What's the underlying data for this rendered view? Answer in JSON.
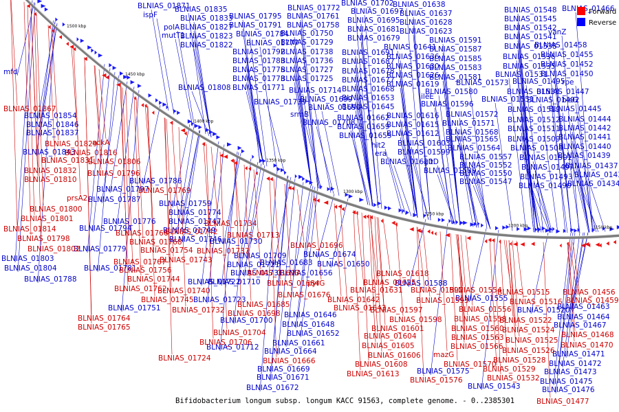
{
  "caption": "Bifidobacterium longum subsp. longum KACC 91563, complete genome. - 0..2385301",
  "legend": [
    {
      "label": "Forward",
      "color": "#ff0000"
    },
    {
      "label": "Reverse",
      "color": "#0000ff"
    }
  ],
  "ticks": [
    "1500 kbp",
    "1450 kbp",
    "1400 kbp",
    "1350 kbp",
    "1300 kbp",
    "1250 kbp",
    "1200 kbp",
    "1150 kbp"
  ],
  "colors": {
    "forward": "#cc0000",
    "reverse": "#0000cc",
    "backbone": "#888888"
  },
  "reverse_labels": [
    "BLNIAS_01871",
    "ispF",
    "BLNIAS_01835",
    "BLNIAS_01833",
    "BLNIAS_01827",
    "BLNIAS_01823",
    "BLNIAS_01822",
    "polA",
    "mutT1",
    "mfd",
    "BLNIAS_01772",
    "BLNIAS_01795",
    "BLNIAS_01761",
    "BLNIAS_01791",
    "BLNIAS_01758",
    "BLNIAS_01784",
    "BLNIAS_01750",
    "BLNIAS_01777",
    "BLNIAS_01729",
    "BLNIAS_01792",
    "BLNIAS_01738",
    "BLNIAS_01783",
    "BLNIAS_01736",
    "BLNIAS_01775",
    "BLNIAS_01727",
    "BLNIAS_01773",
    "BLNIAS_01725",
    "BLNIAS_01771",
    "BLNIAS_01714",
    "BLNIAS_01808",
    "BLNIAS_01699",
    "BLNIAS_01739",
    "BLNIAS_01690",
    "srmB",
    "BLNIAS_01708",
    "BLNIAS_01702",
    "BLNIAS_01697",
    "BLNIAS_01695",
    "BLNIAS_01681",
    "BLNIAS_01679",
    "BLNIAS_01691",
    "BLNIAS_01687",
    "BLNIAS_01678",
    "BLNIAS_01677",
    "BLNIAS_01668",
    "BLNIAS_01653",
    "BLNIAS_01645",
    "BLNIAS_01662",
    "BLNIAS_01659",
    "BLNIAS_01655",
    "hit2",
    "era",
    "BLNIAS_01620",
    "BLNIAS_01638",
    "BLNIAS_01637",
    "BLNIAS_01628",
    "BLNIAS_01623",
    "BLNIAS_01641",
    "BLNIAS_01636",
    "BLNIAS_01630",
    "BLNIAS_01626",
    "BLNIAS_01619",
    "ileE",
    "BLNIAS_01616",
    "BLNIAS_01615",
    "BLNIAS_01612",
    "BLNIAS_01603",
    "BLNIAS_01599",
    "gltD",
    "BLNIAS_01589",
    "BLNIAS_01591",
    "BLNIAS_01587",
    "BLNIAS_01585",
    "BLNIAS_01583",
    "BLNIAS_01581",
    "BLNIAS_01573",
    "BLNIAS_01580",
    "BLNIAS_01596",
    "BLNIAS_01572",
    "BLNIAS_01571",
    "BLNIAS_01568",
    "BLNIAS_01565",
    "BLNIAS_01564",
    "BLNIAS_01557",
    "BLNIAS_01552",
    "BLNIAS_01550",
    "BLNIAS_01547",
    "BLNIAS_01548",
    "BLNIAS_01545",
    "BLNIAS_01542",
    "BLNIAS_01541",
    "BLNIAS_01538",
    "BLNIAS_01536",
    "BLNIAS_01535",
    "BLNIAS_01531",
    "BLNIAS_01533",
    "BLNIAS_01551",
    "BLNIAS_01519",
    "BLNIAS_01512",
    "BLNIAS_01511",
    "BLNIAS_01509",
    "BLNIAS_01508",
    "BLNIAS_01501",
    "BLNIAS_01497",
    "BLNIAS_01493",
    "BLNIAS_01490",
    "BLNIAS_01466",
    "vanZ",
    "BLNIAS_01458",
    "BLNIAS_01455",
    "BLNIAS_01452",
    "BLNIAS_01450",
    "BLNIAS_01495",
    "rpe",
    "BLNIAS_01447",
    "BLNIAS_01492",
    "hisG",
    "BLNIAS_01445",
    "BLNIAS_01444",
    "BLNIAS_01442",
    "BLNIAS_01441",
    "BLNIAS_01440",
    "BLNIAS_01439",
    "BLNIAS_01437",
    "BLNIAS_01436",
    "BLNIAS_01434",
    "BLNIAS_01854",
    "BLNIAS_01846",
    "BLNIAS_01837",
    "BLNIAS_01843",
    "BLNIAS_01786",
    "BLNIAS_01797",
    "BLNIAS_01787",
    "BLNIAS_01759",
    "BLNIAS_01774",
    "BLNIAS_01776",
    "BLNIAS_01747",
    "BLNIAS_01749",
    "BLNIAS_01794",
    "BLNIAS_01746",
    "BLNIAS_01779",
    "BLNIAS_01730",
    "BLNIAS_01803",
    "BLNIAS_01781",
    "BLNIAS_01804",
    "BLNIAS_01788",
    "BLNIAS_01709",
    "BLNIAS_01721",
    "BLNIAS_01683",
    "BLNIAS_01731",
    "BLNIAS_01656",
    "BLNIAS_01722",
    "BLNIAS_01710",
    "BLNIAS_01723",
    "BLNIAS_01751",
    "BLNIAS_01700",
    "BLNIAS_01712",
    "BLNIAS_01674",
    "BLNIAS_01650",
    "BLNIAS_01648",
    "BLNIAS_01646",
    "BLNIAS_01652",
    "BLNIAS_01661",
    "BLNIAS_01664",
    "BLNIAS_01669",
    "BLNIAS_01671",
    "BLNIAS_01672",
    "BLNIAS_01588",
    "BLNIAS_01555",
    "BLNIAS_01575",
    "BLNIAS_01543",
    "BLNIAS_01520",
    "BLNIAS_01463",
    "BLNIAS_01464",
    "BLNIAS_01467",
    "BLNIAS_01471",
    "BLNIAS_01472",
    "BLNIAS_01473",
    "BLNIAS_01475",
    "BLNIAS_01476"
  ],
  "forward_labels": [
    "BLNIAS_01867",
    "BLNIAS_01829",
    "ackA",
    "BLNIAS_01831",
    "BLNIAS_01816",
    "BLNIAS_01806",
    "BLNIAS_01832",
    "BLNIAS_01796",
    "BLNIAS_01810",
    "BLNIAS_01769",
    "prsA2",
    "BLNIAS_01800",
    "BLNIAS_01801",
    "BLNIAS_01814",
    "BLNIAS_01798",
    "BLNIAS_01766",
    "BLNIAS_01742",
    "BLNIAS_01734",
    "BLNIAS_01768",
    "BLNIAS_01802",
    "BLNIAS_01754",
    "BLNIAS_01737",
    "BLNIAS_01713",
    "BLNIAS_01767",
    "BLNIAS_01743",
    "BLNIAS_01696",
    "BLNIAS_01756",
    "BLNIAS_01744",
    "BLNIAS_01693",
    "BLNIAS_01684",
    "pyrG",
    "BLNIAS_01762",
    "BLNIAS_01740",
    "BLNIAS_01676",
    "BLNIAS_01745",
    "BLNIAS_01685",
    "BLNIAS_01732",
    "BLNIAS_01698",
    "BLNIAS_01764",
    "BLNIAS_01765",
    "BLNIAS_01704",
    "BLNIAS_01706",
    "BLNIAS_01724",
    "BLNIAS_01666",
    "BLNIAS_01618",
    "BLNIAS_01625",
    "BLNIAS_01631",
    "BLNIAS_01642",
    "BLNIAS_01643",
    "BLNIAS_01592",
    "BLNIAS_01593",
    "BLNIAS_01597",
    "BLNIAS_01598",
    "BLNIAS_01601",
    "BLNIAS_01604",
    "BLNIAS_01605",
    "BLNIAS_01606",
    "BLNIAS_01608",
    "BLNIAS_01613",
    "BLNIAS_01554",
    "BLNIAS_01556",
    "BLNIAS_01558",
    "BLNIAS_01560",
    "BLNIAS_01563",
    "BLNIAS_01566",
    "mazG",
    "BLNIAS_01570",
    "BLNIAS_01576",
    "BLNIAS_01515",
    "BLNIAS_01516",
    "BLNIAS_01522",
    "BLNIAS_01524",
    "BLNIAS_01525",
    "BLNIAS_01526",
    "BLNIAS_01528",
    "BLNIAS_01529",
    "BLNIAS_01532",
    "BLNIAS_01456",
    "BLNIAS_01459",
    "BLNIAS_01468",
    "BLNIAS_01470",
    "BLNIAS_01477"
  ]
}
